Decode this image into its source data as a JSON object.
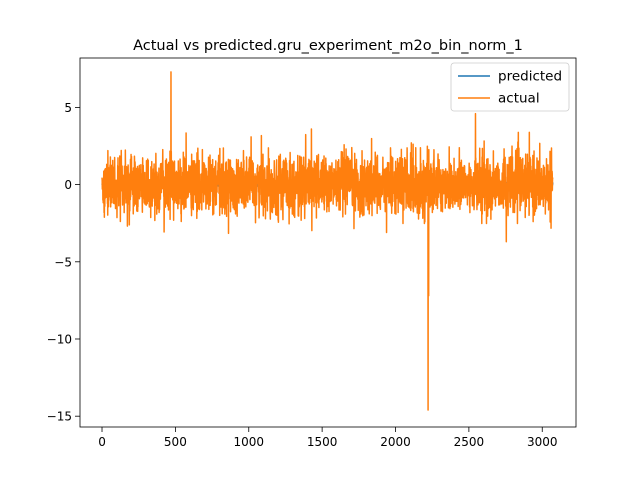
{
  "chart_data": {
    "type": "line",
    "title": "Actual vs predicted.gru_experiment_m2o_bin_norm_1",
    "xlabel": "",
    "ylabel": "",
    "xlim": [
      -150,
      3230
    ],
    "ylim": [
      -15.7,
      8.2
    ],
    "xticks": [
      0,
      500,
      1000,
      1500,
      2000,
      2500,
      3000
    ],
    "yticks": [
      5,
      0,
      -5,
      -10,
      -15
    ],
    "ytick_labels": [
      "5",
      "0",
      "−5",
      "−10",
      "−15"
    ],
    "grid": false,
    "legend_position": "top-right",
    "n_points": 3073,
    "series": [
      {
        "name": "predicted",
        "color": "#1f77b4",
        "approx_range": [
          -0.3,
          0.3
        ]
      },
      {
        "name": "actual",
        "color": "#ff7f0e",
        "typical_range": [
          -3.2,
          3.6
        ],
        "spikes": [
          {
            "x": 470,
            "y": 7.3
          },
          {
            "x": 2222,
            "y": -14.6
          },
          {
            "x": 2226,
            "y": -7.2
          },
          {
            "x": 2545,
            "y": 4.6
          },
          {
            "x": 1427,
            "y": 3.6
          },
          {
            "x": 2755,
            "y": -3.7
          },
          {
            "x": 1939,
            "y": -3.1
          }
        ]
      }
    ]
  }
}
